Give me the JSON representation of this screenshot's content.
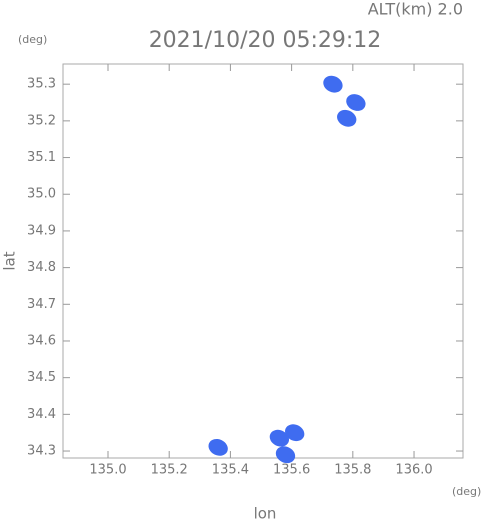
{
  "chart_data": {
    "type": "scatter",
    "subtitle": "ALT(km) 2.0",
    "title": "2021/10/20 05:29:12",
    "y_unit": "(deg)",
    "x_unit": "(deg)",
    "ylabel": "lat",
    "xlabel": "lon",
    "xlim": [
      134.853,
      136.16
    ],
    "ylim": [
      34.281,
      35.355
    ],
    "xticks": [
      {
        "value": 135,
        "label": "135.0"
      },
      135.2,
      135.4,
      135.6,
      135.8,
      {
        "value": 136,
        "label": "136.0"
      }
    ],
    "yticks": [
      34.3,
      34.4,
      34.5,
      34.6,
      34.7,
      34.8,
      34.9,
      {
        "value": 35,
        "label": "35.0"
      },
      35.1,
      35.2,
      35.3
    ],
    "series": [
      {
        "color": "#3f6cf0",
        "x": [
          135.735,
          135.78,
          135.81,
          135.36,
          135.56,
          135.61,
          135.58
        ],
        "values": [
          35.3,
          35.207,
          35.25,
          34.31,
          34.335,
          34.35,
          34.29
        ]
      }
    ]
  }
}
